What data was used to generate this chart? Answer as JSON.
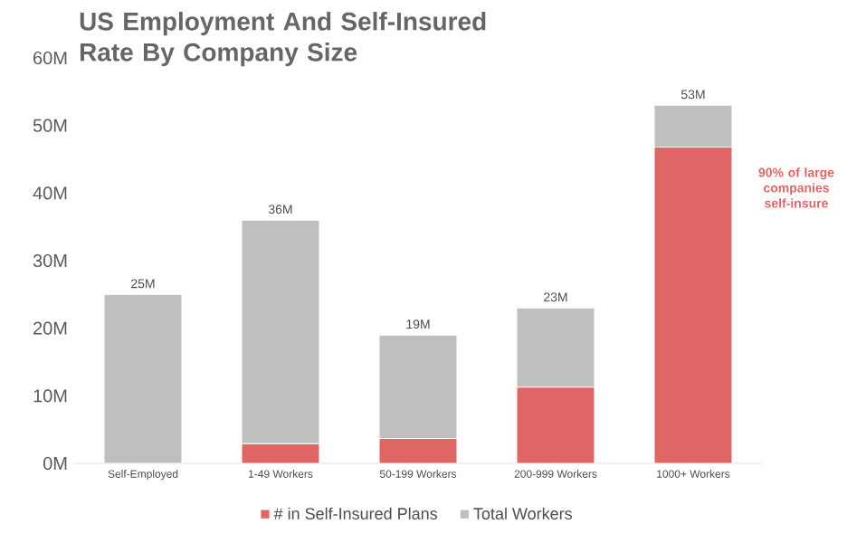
{
  "chart_data": {
    "type": "bar",
    "title": "US Employment And Self-Insured Rate By Company Size",
    "categories": [
      "Self-Employed",
      "1-49 Workers",
      "50-199 Workers",
      "200-999 Workers",
      "1000+ Workers"
    ],
    "stacked": true,
    "series": [
      {
        "name": "# in Self-Insured Plans",
        "color": "#e06666",
        "values": [
          0,
          2.9,
          3.7,
          11.3,
          46.8
        ]
      },
      {
        "name": "Total Workers",
        "color": "#bfbfbf",
        "values": [
          25,
          33.1,
          15.3,
          11.7,
          6.2
        ]
      }
    ],
    "totals": [
      "25M",
      "36M",
      "19M",
      "23M",
      "53M"
    ],
    "ylim": [
      0,
      60
    ],
    "yticks": [
      {
        "value": 0,
        "label": "0M"
      },
      {
        "value": 10,
        "label": "10M"
      },
      {
        "value": 20,
        "label": "20M"
      },
      {
        "value": 30,
        "label": "30M"
      },
      {
        "value": 40,
        "label": "40M"
      },
      {
        "value": 50,
        "label": "50M"
      },
      {
        "value": 60,
        "label": "60M"
      }
    ],
    "annotations": [
      "90% of large companies self-insure"
    ],
    "legend": "bottom",
    "grid": false
  }
}
